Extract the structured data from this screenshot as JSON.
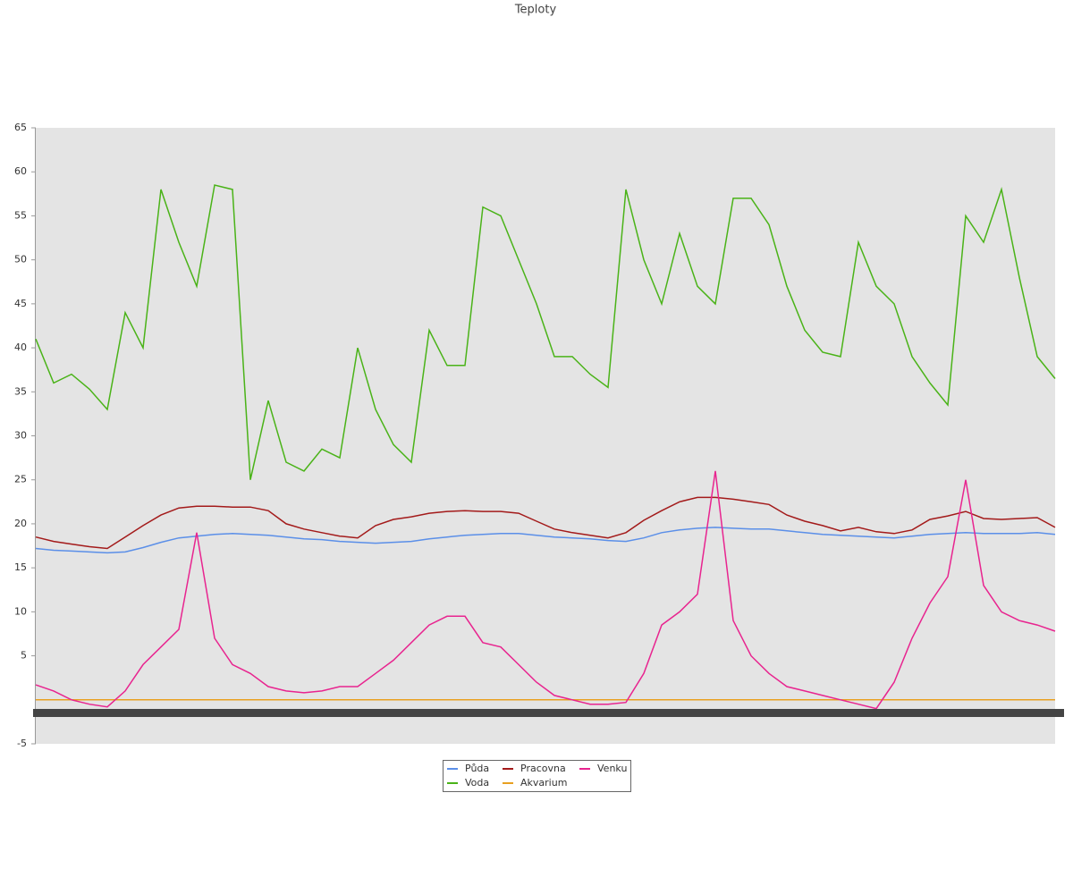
{
  "chart_data": {
    "type": "line",
    "title": "Teploty",
    "categories": [
      null,
      null,
      null,
      null,
      null,
      null,
      null,
      null,
      null,
      null,
      null,
      null,
      null,
      null,
      null,
      null,
      null,
      null,
      null,
      null,
      null,
      null,
      null,
      null,
      null,
      null,
      null,
      null,
      null,
      null,
      null,
      null,
      null,
      null,
      null,
      null,
      null,
      null,
      null,
      null,
      null,
      null,
      null,
      null,
      null,
      null,
      null,
      null,
      null,
      null,
      null,
      null,
      null,
      null,
      null,
      null,
      null,
      null
    ],
    "ylim": [
      -5,
      65
    ],
    "yticks": [
      -5,
      5,
      10,
      15,
      20,
      25,
      30,
      35,
      40,
      45,
      50,
      55,
      60,
      65
    ],
    "series": [
      {
        "name": "Půda",
        "color": "#5b8fe8",
        "values": [
          17.2,
          17,
          16.9,
          16.8,
          16.7,
          16.8,
          17.3,
          17.9,
          18.4,
          18.6,
          18.8,
          18.9,
          18.8,
          18.7,
          18.5,
          18.3,
          18.2,
          18,
          17.9,
          17.8,
          17.9,
          18,
          18.3,
          18.5,
          18.7,
          18.8,
          18.9,
          18.9,
          18.7,
          18.5,
          18.4,
          18.3,
          18.1,
          18,
          18.4,
          19,
          19.3,
          19.5,
          19.6,
          19.5,
          19.4,
          19.4,
          19.2,
          19,
          18.8,
          18.7,
          18.6,
          18.5,
          18.4,
          18.6,
          18.8,
          18.9,
          19,
          18.9,
          18.9,
          18.9,
          19,
          18.8
        ]
      },
      {
        "name": "Voda",
        "color": "#4ab318",
        "values": [
          41,
          36,
          37,
          35.3,
          33,
          44,
          40,
          58,
          52,
          47,
          58.5,
          58,
          25,
          34,
          27,
          26,
          28.5,
          27.5,
          40,
          33,
          29,
          27,
          42,
          38,
          38,
          56,
          55,
          50,
          45,
          39,
          39,
          37,
          35.5,
          58,
          50,
          45,
          53,
          47,
          45,
          57,
          57,
          54,
          47,
          42,
          39.5,
          39,
          52,
          47,
          45,
          39,
          36,
          33.5,
          55,
          52,
          58,
          48,
          39,
          36.5
        ]
      },
      {
        "name": "Pracovna",
        "color": "#a31a1a",
        "values": [
          18.5,
          18,
          17.7,
          17.4,
          17.2,
          18.5,
          19.8,
          21,
          21.8,
          22,
          22,
          21.9,
          21.9,
          21.5,
          20,
          19.4,
          19,
          18.6,
          18.4,
          19.8,
          20.5,
          20.8,
          21.2,
          21.4,
          21.5,
          21.4,
          21.4,
          21.2,
          20.3,
          19.4,
          19,
          18.7,
          18.4,
          19,
          20.4,
          21.5,
          22.5,
          23,
          23,
          22.8,
          22.5,
          22.2,
          21,
          20.3,
          19.8,
          19.2,
          19.6,
          19.1,
          18.9,
          19.3,
          20.5,
          20.9,
          21.4,
          20.6,
          20.5,
          20.6,
          20.7,
          19.6
        ]
      },
      {
        "name": "Akvarium",
        "color": "#e8a020",
        "values": [
          0,
          0,
          0,
          0,
          0,
          0,
          0,
          0,
          0,
          0,
          0,
          0,
          0,
          0,
          0,
          0,
          0,
          0,
          0,
          0,
          0,
          0,
          0,
          0,
          0,
          0,
          0,
          0,
          0,
          0,
          0,
          0,
          0,
          0,
          0,
          0,
          0,
          0,
          0,
          0,
          0,
          0,
          0,
          0,
          0,
          0,
          0,
          0,
          0,
          0,
          0,
          0,
          0,
          0,
          0,
          0,
          0,
          0
        ]
      },
      {
        "name": "Venku",
        "color": "#e8248f",
        "values": [
          1.7,
          1,
          0,
          -0.5,
          -0.8,
          1,
          4,
          6,
          8,
          19,
          7,
          4,
          3,
          1.5,
          1,
          0.8,
          1,
          1.5,
          1.5,
          3,
          4.5,
          6.5,
          8.5,
          9.5,
          9.5,
          6.5,
          6,
          4,
          2,
          0.5,
          0,
          -0.5,
          -0.5,
          -0.3,
          3,
          8.5,
          10,
          12,
          26,
          9,
          5,
          3,
          1.5,
          1,
          0.5,
          0,
          -0.5,
          -1,
          2,
          7,
          11,
          14,
          25,
          13,
          10,
          9,
          8.5,
          7.8
        ]
      }
    ]
  }
}
